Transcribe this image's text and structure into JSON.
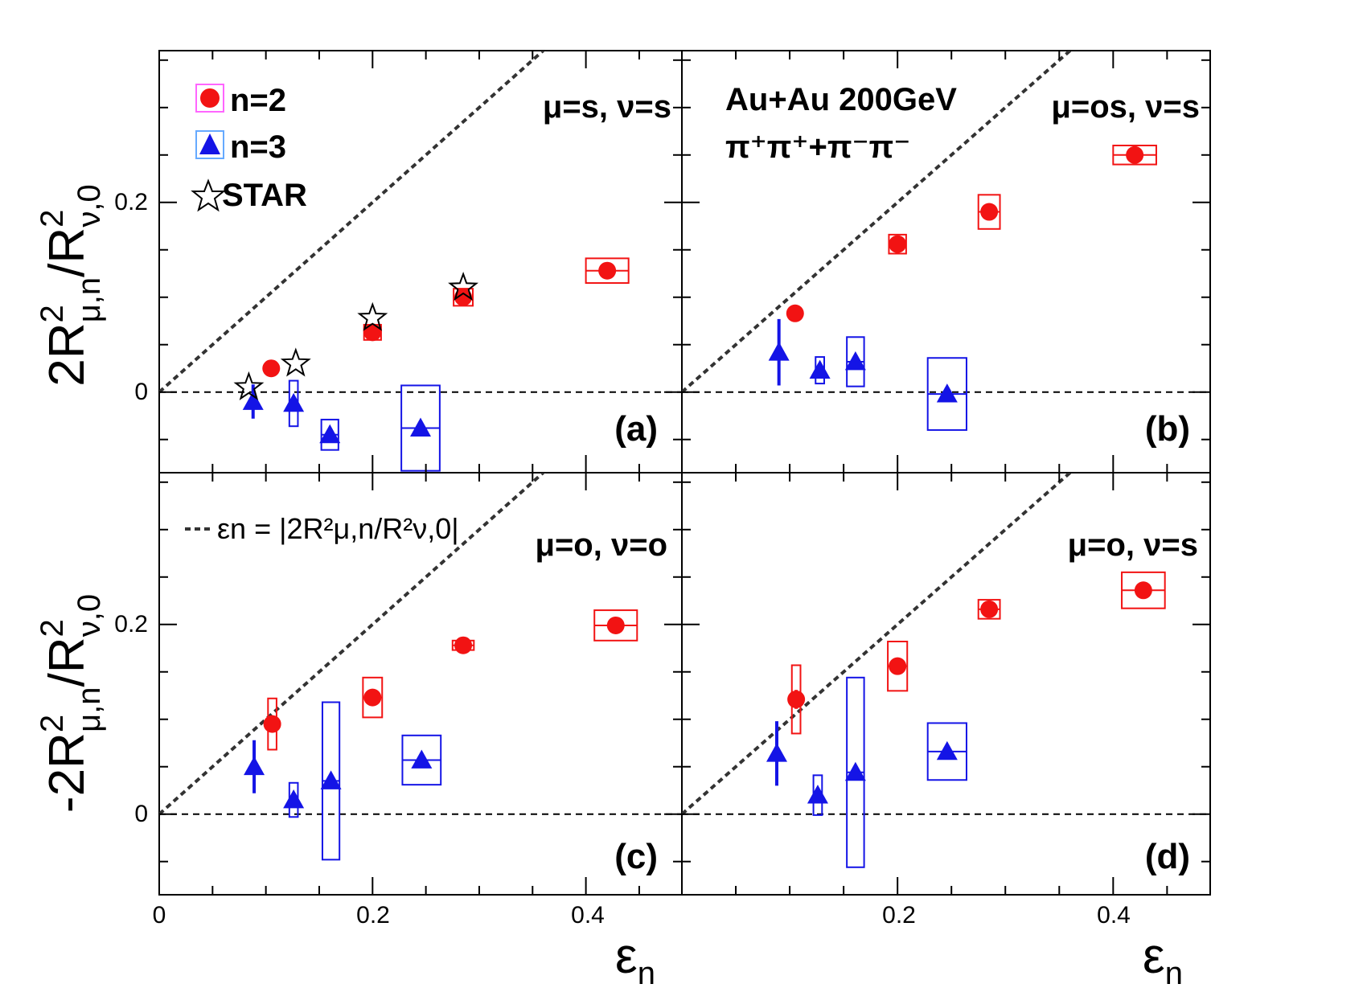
{
  "chart_data": {
    "type": "scatter",
    "shared": {
      "xlim": [
        0,
        0.49
      ],
      "ylim": [
        -0.085,
        0.36
      ],
      "x_ticks": [
        "0",
        "0.2",
        "0.4"
      ],
      "y_ticks": [
        "0",
        "0.2"
      ],
      "xlabel": "εn",
      "ylabel_top": "2R²μ,n/R²ν,0",
      "ylabel_bottom": "-2R²μ,n/R²ν,0"
    },
    "legend": {
      "n2": "n=2",
      "n3": "n=3",
      "star": "STAR",
      "diagonal_note": "εn = |2R²μ,n/R²ν,0|"
    },
    "annotation": {
      "line1": "Au+Au 200GeV",
      "line2": "π⁺π⁺+π⁻π⁻"
    },
    "colors": {
      "n2": "#f21313",
      "n3": "#1414e6",
      "star": "#000000"
    },
    "panels": [
      {
        "id": "a",
        "label": "(a)",
        "title": "μ=s, ν=s",
        "n2": [
          {
            "x": 0.105,
            "y": 0.025,
            "sx": 0.0,
            "sy": 0.0,
            "ey": 0.004
          },
          {
            "x": 0.2,
            "y": 0.063,
            "sx": 0.008,
            "sy": 0.008,
            "ey": 0.004
          },
          {
            "x": 0.285,
            "y": 0.1,
            "sx": 0.009,
            "sy": 0.009,
            "ey": 0.004
          },
          {
            "x": 0.42,
            "y": 0.128,
            "sx": 0.02,
            "sy": 0.013,
            "ey": 0.004
          }
        ],
        "n3": [
          {
            "x": 0.088,
            "y": -0.01,
            "sx": 0.0,
            "sy": 0.0,
            "ey": 0.018
          },
          {
            "x": 0.126,
            "y": -0.012,
            "sx": 0.004,
            "sy": 0.024,
            "ey": 0.0
          },
          {
            "x": 0.16,
            "y": -0.045,
            "sx": 0.008,
            "sy": 0.016,
            "ey": 0.0
          },
          {
            "x": 0.245,
            "y": -0.038,
            "sx": 0.018,
            "sy": 0.045,
            "ey": 0.0
          }
        ],
        "star": [
          {
            "x": 0.084,
            "y": 0.005
          },
          {
            "x": 0.128,
            "y": 0.03
          },
          {
            "x": 0.2,
            "y": 0.078
          },
          {
            "x": 0.285,
            "y": 0.11
          }
        ]
      },
      {
        "id": "b",
        "label": "(b)",
        "title": "μ=os, ν=s",
        "n2": [
          {
            "x": 0.105,
            "y": 0.083,
            "sx": 0.0,
            "sy": 0.0,
            "ey": 0.008
          },
          {
            "x": 0.2,
            "y": 0.156,
            "sx": 0.008,
            "sy": 0.01,
            "ey": 0.004
          },
          {
            "x": 0.285,
            "y": 0.19,
            "sx": 0.01,
            "sy": 0.018,
            "ey": 0.004
          },
          {
            "x": 0.42,
            "y": 0.25,
            "sx": 0.02,
            "sy": 0.01,
            "ey": 0.004
          }
        ],
        "n3": [
          {
            "x": 0.09,
            "y": 0.042,
            "sx": 0.0,
            "sy": 0.0,
            "ey": 0.035
          },
          {
            "x": 0.128,
            "y": 0.023,
            "sx": 0.004,
            "sy": 0.014,
            "ey": 0.0
          },
          {
            "x": 0.161,
            "y": 0.032,
            "sx": 0.008,
            "sy": 0.026,
            "ey": 0.0
          },
          {
            "x": 0.246,
            "y": -0.002,
            "sx": 0.018,
            "sy": 0.038,
            "ey": 0.0
          }
        ],
        "star": []
      },
      {
        "id": "c",
        "label": "(c)",
        "title": "μ=o, ν=o",
        "n2": [
          {
            "x": 0.106,
            "y": 0.095,
            "sx": 0.004,
            "sy": 0.027,
            "ey": 0.006
          },
          {
            "x": 0.2,
            "y": 0.123,
            "sx": 0.009,
            "sy": 0.021,
            "ey": 0.004
          },
          {
            "x": 0.285,
            "y": 0.178,
            "sx": 0.01,
            "sy": 0.005,
            "ey": 0.004
          },
          {
            "x": 0.428,
            "y": 0.199,
            "sx": 0.02,
            "sy": 0.016,
            "ey": 0.004
          }
        ],
        "n3": [
          {
            "x": 0.089,
            "y": 0.05,
            "sx": 0.0,
            "sy": 0.0,
            "ey": 0.028
          },
          {
            "x": 0.126,
            "y": 0.015,
            "sx": 0.004,
            "sy": 0.018,
            "ey": 0.0
          },
          {
            "x": 0.161,
            "y": 0.035,
            "sx": 0.008,
            "sy": 0.083,
            "ey": 0.0
          },
          {
            "x": 0.246,
            "y": 0.057,
            "sx": 0.018,
            "sy": 0.026,
            "ey": 0.0
          }
        ],
        "star": []
      },
      {
        "id": "d",
        "label": "(d)",
        "title": "μ=o, ν=s",
        "n2": [
          {
            "x": 0.106,
            "y": 0.121,
            "sx": 0.004,
            "sy": 0.036,
            "ey": 0.01
          },
          {
            "x": 0.2,
            "y": 0.156,
            "sx": 0.009,
            "sy": 0.026,
            "ey": 0.004
          },
          {
            "x": 0.285,
            "y": 0.216,
            "sx": 0.01,
            "sy": 0.01,
            "ey": 0.004
          },
          {
            "x": 0.428,
            "y": 0.236,
            "sx": 0.02,
            "sy": 0.019,
            "ey": 0.004
          }
        ],
        "n3": [
          {
            "x": 0.088,
            "y": 0.064,
            "sx": 0.0,
            "sy": 0.0,
            "ey": 0.034
          },
          {
            "x": 0.126,
            "y": 0.02,
            "sx": 0.004,
            "sy": 0.021,
            "ey": 0.0
          },
          {
            "x": 0.161,
            "y": 0.044,
            "sx": 0.008,
            "sy": 0.1,
            "ey": 0.0
          },
          {
            "x": 0.246,
            "y": 0.066,
            "sx": 0.018,
            "sy": 0.03,
            "ey": 0.0
          }
        ],
        "star": []
      }
    ]
  }
}
